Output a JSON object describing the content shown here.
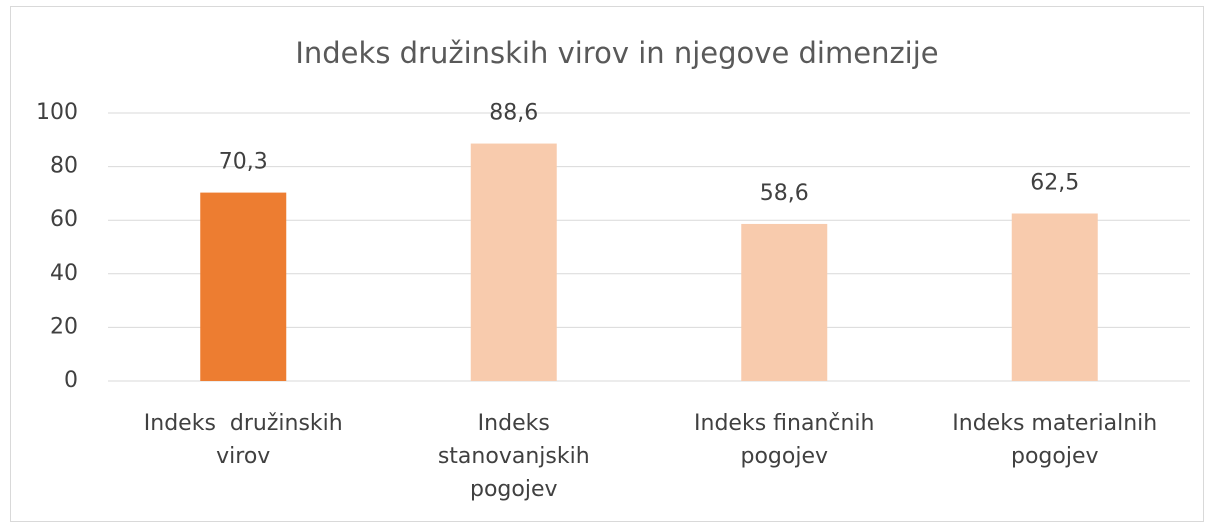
{
  "chart_data": {
    "type": "bar",
    "title": "Indeks družinskih virov in njegove dimenzije",
    "categories": [
      "Indeks  družinskih\nvirov",
      "Indeks\nstanovanjskih\npogojev",
      "Indeks finančnih\npogojev",
      "Indeks materialnih\npogojev"
    ],
    "values": [
      70.3,
      88.6,
      58.6,
      62.5
    ],
    "value_labels": [
      "70,3",
      "88,6",
      "58,6",
      "62,5"
    ],
    "colors": [
      "#ed7d31",
      "#f8cbad",
      "#f8cbad",
      "#f8cbad"
    ],
    "ylim": [
      0,
      100
    ],
    "yticks": [
      0,
      20,
      40,
      60,
      80,
      100
    ],
    "grid": true
  }
}
